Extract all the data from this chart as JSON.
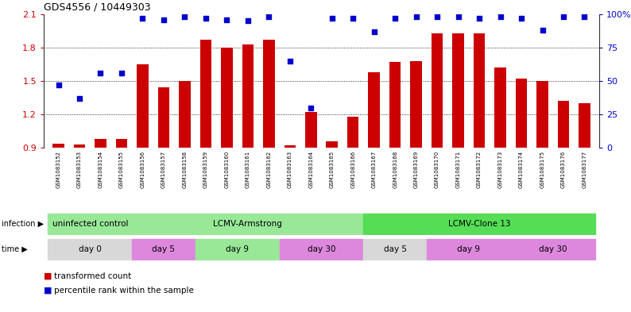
{
  "title": "GDS4556 / 10449303",
  "samples": [
    "GSM1083152",
    "GSM1083153",
    "GSM1083154",
    "GSM1083155",
    "GSM1083156",
    "GSM1083157",
    "GSM1083158",
    "GSM1083159",
    "GSM1083160",
    "GSM1083161",
    "GSM1083162",
    "GSM1083163",
    "GSM1083164",
    "GSM1083165",
    "GSM1083166",
    "GSM1083167",
    "GSM1083168",
    "GSM1083169",
    "GSM1083170",
    "GSM1083171",
    "GSM1083172",
    "GSM1083173",
    "GSM1083174",
    "GSM1083175",
    "GSM1083176",
    "GSM1083177"
  ],
  "bar_values": [
    0.935,
    0.93,
    0.98,
    0.98,
    1.65,
    1.44,
    1.5,
    1.87,
    1.8,
    1.83,
    1.87,
    0.92,
    1.22,
    0.96,
    1.18,
    1.58,
    1.67,
    1.68,
    1.93,
    1.93,
    1.93,
    1.62,
    1.52,
    1.5,
    1.32,
    1.3
  ],
  "blue_values_pct": [
    47,
    37,
    56,
    56,
    97,
    96,
    98,
    97,
    96,
    95,
    98,
    65,
    30,
    97,
    97,
    87,
    97,
    98,
    98,
    98,
    97,
    98,
    97,
    88,
    98,
    98
  ],
  "ylim_left": [
    0.9,
    2.1
  ],
  "ylim_right": [
    0,
    100
  ],
  "yticks_left": [
    0.9,
    1.2,
    1.5,
    1.8,
    2.1
  ],
  "yticks_right": [
    0,
    25,
    50,
    75,
    100
  ],
  "bar_color": "#cc0000",
  "blue_color": "#0000cc",
  "infection_groups": [
    {
      "label": "uninfected control",
      "start": 0,
      "end": 4,
      "color": "#98e898"
    },
    {
      "label": "LCMV-Armstrong",
      "start": 4,
      "end": 15,
      "color": "#98e898"
    },
    {
      "label": "LCMV-Clone 13",
      "start": 15,
      "end": 26,
      "color": "#55dd55"
    }
  ],
  "time_groups": [
    {
      "label": "day 0",
      "start": 0,
      "end": 4,
      "color": "#d8d8d8"
    },
    {
      "label": "day 5",
      "start": 4,
      "end": 7,
      "color": "#dd88dd"
    },
    {
      "label": "day 9",
      "start": 7,
      "end": 11,
      "color": "#98e898"
    },
    {
      "label": "day 30",
      "start": 11,
      "end": 15,
      "color": "#dd88dd"
    },
    {
      "label": "day 5",
      "start": 15,
      "end": 18,
      "color": "#d8d8d8"
    },
    {
      "label": "day 9",
      "start": 18,
      "end": 22,
      "color": "#dd88dd"
    },
    {
      "label": "day 30",
      "start": 22,
      "end": 26,
      "color": "#dd88dd"
    }
  ],
  "legend_bar_label": "transformed count",
  "legend_blue_label": "percentile rank within the sample",
  "bg_color": "#ffffff",
  "xtick_bg": "#c8c8c8"
}
